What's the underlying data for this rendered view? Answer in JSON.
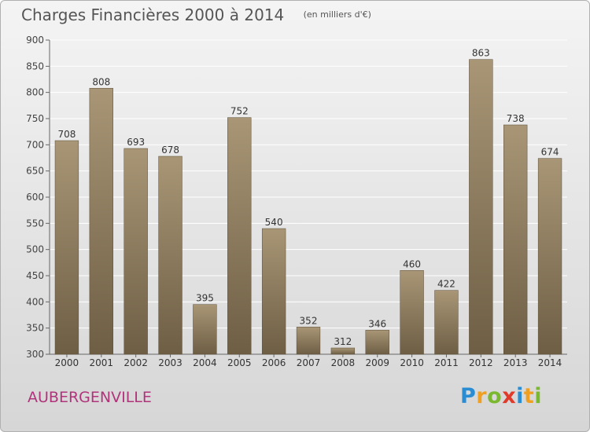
{
  "header": {
    "title": "Charges Financières 2000 à 2014",
    "subtitle": "(en milliers d'€)"
  },
  "footer": {
    "commune": "AUBERGENVILLE"
  },
  "logo": {
    "text": "Proxiti",
    "letters": [
      {
        "char": "P",
        "color": "#2a8dd4"
      },
      {
        "char": "r",
        "color": "#f0a020"
      },
      {
        "char": "o",
        "color": "#7ab830"
      },
      {
        "char": "x",
        "color": "#e03a2a"
      },
      {
        "char": "i",
        "color": "#2a8dd4"
      },
      {
        "char": "t",
        "color": "#f0a020"
      },
      {
        "char": "i",
        "color": "#7ab830"
      }
    ]
  },
  "chart_data": {
    "type": "bar",
    "categories": [
      "2000",
      "2001",
      "2002",
      "2003",
      "2004",
      "2005",
      "2006",
      "2007",
      "2008",
      "2009",
      "2010",
      "2011",
      "2012",
      "2013",
      "2014"
    ],
    "values": [
      708,
      808,
      693,
      678,
      395,
      752,
      540,
      352,
      312,
      346,
      460,
      422,
      863,
      738,
      674
    ],
    "ylim": [
      300,
      900
    ],
    "yticks": [
      300,
      350,
      400,
      450,
      500,
      550,
      600,
      650,
      700,
      750,
      800,
      850,
      900
    ],
    "grid": true,
    "bar_color_top": "#a89676",
    "bar_color_bottom": "#6e5e44",
    "title": "Charges Financières 2000 à 2014",
    "subtitle": "(en milliers d'€)"
  }
}
